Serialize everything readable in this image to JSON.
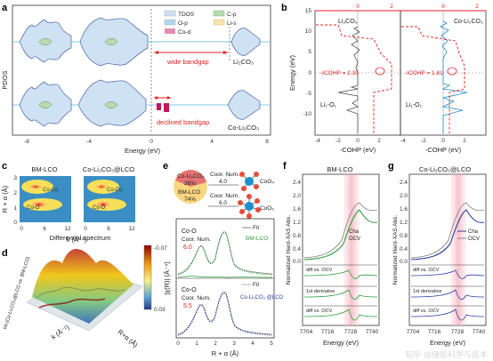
{
  "panels": {
    "a": {
      "label": "a",
      "ylabel": "PDOS",
      "xlabel": "Energy (eV)",
      "xticks": [
        "-8",
        "-4",
        "0",
        "4",
        "8"
      ],
      "legend": [
        {
          "name": "TDOS",
          "color": "#cfe2f3"
        },
        {
          "name": "O-p",
          "color": "#b7d4ef"
        },
        {
          "name": "Co-d",
          "color": "#e38bb2"
        },
        {
          "name": "C-p",
          "color": "#b8dcb0"
        },
        {
          "name": "Li-s",
          "color": "#f7e3a8"
        }
      ],
      "top_material": "Li₂CO₃",
      "bottom_material": "Co-Li₂CO₃",
      "annot_wide": "wide bandgap",
      "annot_declined": "declined bandgap"
    },
    "b": {
      "label": "b",
      "ylabel": "Energy (eV)",
      "xlabel": "-COHP (eV)",
      "top_axis_ticks": [
        "0",
        "2"
      ],
      "yticks": [
        "15",
        "10",
        "5",
        "0",
        "-5",
        "-10"
      ],
      "xticks": [
        "-4",
        "-2",
        "0",
        "2"
      ],
      "left_material": "Li₂CO₃",
      "right_material": "Co-Li₂CO₃",
      "left_icohp": "-ICOHP = 2.33",
      "right_icohp": "-ICOHP = 1.81",
      "bond": "Li₁-O₁"
    },
    "c": {
      "label": "c",
      "title_left": "BM-LCO",
      "title_right": "Co-Li₂CO₃@LCO",
      "ylabel": "R + α (Å)",
      "xlabel": "k (Å⁻¹)",
      "xticks": [
        "0",
        "6",
        "12"
      ],
      "yticks": [
        "3",
        "2",
        "1",
        "0"
      ],
      "peak_labels": [
        "Co-Co",
        "Co-O"
      ]
    },
    "d": {
      "label": "d",
      "title": "Differential spectrum",
      "zlabel": "Int.(Co-Li₂CO₃@LCO vs. BM-LCO)",
      "colorbar": [
        "-0.07",
        "0.03"
      ],
      "xlabel": "k (Å⁻¹)",
      "ylabel": "R+α (Å)"
    },
    "e": {
      "label": "e",
      "pie_values": [
        {
          "name": "Co-Li₂CO₃",
          "pct": "26%",
          "color": "#e57373"
        },
        {
          "name": "BM-LCO",
          "pct": "74%",
          "color": "#f9d77e"
        }
      ],
      "coord_title": "Coor. Num.",
      "coord_values": [
        "4.0",
        "6.0"
      ],
      "species": [
        "CoO₄",
        "CoO₆"
      ],
      "top_label": "Co-O",
      "top_coor": "Coor. Num.",
      "top_coor_val": "6.0",
      "top_sample": "BM-LCO",
      "bot_label": "Co-O",
      "bot_coor": "Coor. Num.",
      "bot_coor_val": "5.5",
      "bot_sample": "Co-Li₂CO₃ @LCO",
      "fit": "Fit",
      "ylabel": "|χ(R)| (Å⁻⁴)",
      "xlabel": "R + α (Å)",
      "xticks": [
        "0",
        "1",
        "2",
        "3",
        "4",
        "5"
      ]
    },
    "f": {
      "label": "f",
      "title": "BM-LCO",
      "ylabel": "Normalized Hard-XAS Abs.",
      "yticks": [
        "2.4",
        "2.0",
        "1.6",
        "1.2",
        "0.8",
        "0.4",
        "0.0"
      ],
      "legend": [
        "Cha",
        "OCV"
      ],
      "sub1": "diff vs. OCV",
      "sub2": "1st derivative",
      "sub3": "diff vs. OCV",
      "xlabel": "Energy (eV)",
      "xticks": [
        "7704",
        "7716",
        "7728",
        "7740"
      ]
    },
    "g": {
      "label": "g",
      "title": "Co-Li₂CO₃@LCO",
      "ylabel": "Normalized Hard-XAS Abs.",
      "yticks": [
        "2.4",
        "2.0",
        "1.6",
        "1.2",
        "0.8",
        "0.4",
        "0.0"
      ],
      "legend": [
        "Cha",
        "OCV"
      ],
      "sub1": "diff vs. OCV",
      "sub2": "1st derivative",
      "sub3": "diff vs. OCV",
      "xlabel": "Energy (eV)",
      "xticks": [
        "7704",
        "7716",
        "7728",
        "7740"
      ]
    },
    "watermark": "知乎 @储能科学与技术"
  }
}
